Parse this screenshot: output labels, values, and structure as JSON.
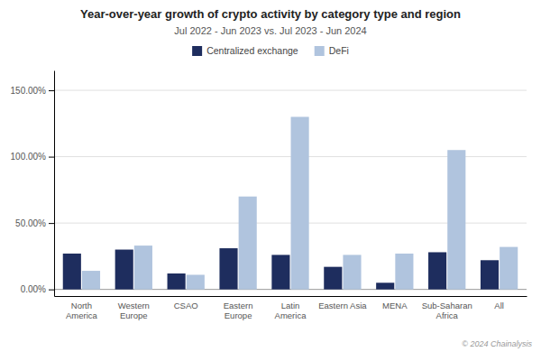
{
  "chart_data": {
    "type": "bar",
    "title": "Year-over-year growth of crypto activity by category type and region",
    "subtitle": "Jul 2022 - Jun 2023 vs. Jul 2023 - Jun 2024",
    "categories": [
      "North America",
      "Western Europe",
      "CSAO",
      "Eastern Europe",
      "Latin America",
      "Eastern Asia",
      "MENA",
      "Sub-Saharan Africa",
      "All"
    ],
    "series": [
      {
        "name": "Centralized exchange",
        "color": "#1e2d5e",
        "values": [
          27,
          30,
          12,
          31,
          26,
          17,
          5,
          28,
          22
        ]
      },
      {
        "name": "DeFi",
        "color": "#b0c4de",
        "values": [
          14,
          33,
          11,
          70,
          130,
          26,
          27,
          105,
          32
        ]
      }
    ],
    "ylim": [
      -5,
      165
    ],
    "yticks": [
      {
        "value": 0,
        "label": "0.00%"
      },
      {
        "value": 50,
        "label": "50.00%"
      },
      {
        "value": 100,
        "label": "100.00%"
      },
      {
        "value": 150,
        "label": "150.00%"
      }
    ],
    "grid": true,
    "legend": "top",
    "annotations": [
      "© 2024 Chainalysis"
    ]
  }
}
